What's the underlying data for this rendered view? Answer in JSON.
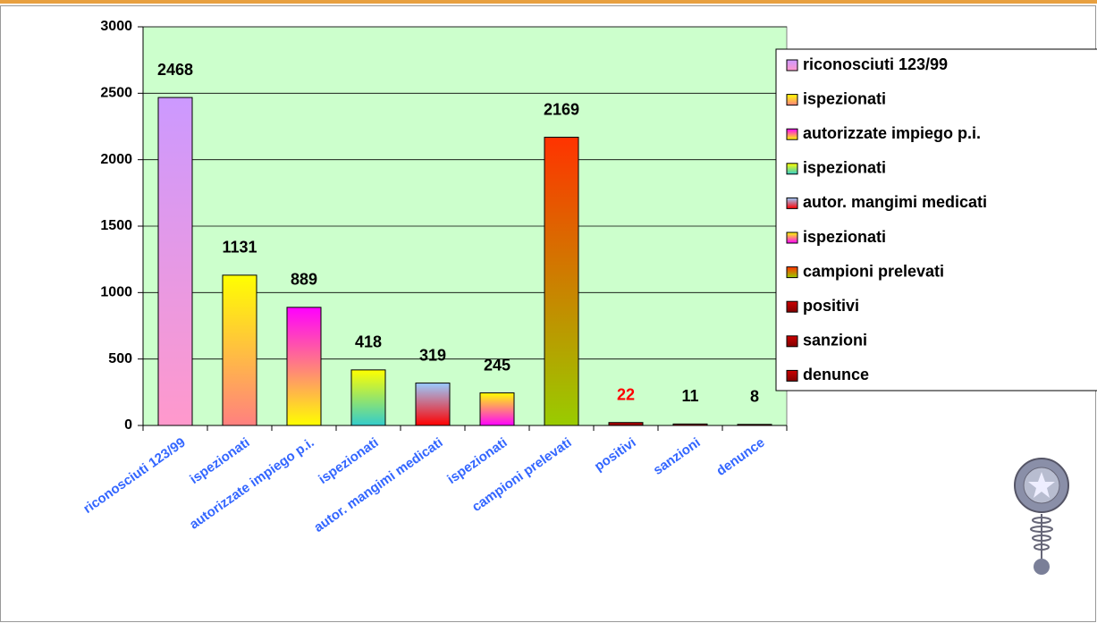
{
  "chart_data": {
    "type": "bar",
    "categories": [
      "riconosciuti 123/99",
      "ispezionati",
      "autorizzate impiego p.i.",
      "ispezionati",
      "autor. mangimi medicati",
      "ispezionati",
      "campioni prelevati",
      "positivi",
      "sanzioni",
      "denunce"
    ],
    "values": [
      2468,
      1131,
      889,
      418,
      319,
      245,
      2169,
      22,
      11,
      8
    ],
    "colors": [
      [
        "#cc99ff",
        "#ff99cc"
      ],
      [
        "#ffff00",
        "#ff8080"
      ],
      [
        "#ff00ff",
        "#ffff00"
      ],
      [
        "#ffff00",
        "#33cccc"
      ],
      [
        "#99ccff",
        "#ff0000"
      ],
      [
        "#ffff00",
        "#ff00ff"
      ],
      [
        "#ff3300",
        "#99cc00"
      ],
      [
        "#cc0000",
        "#800000"
      ],
      [
        "#cc0000",
        "#800000"
      ],
      [
        "#cc0000",
        "#800000"
      ]
    ],
    "label_colors": [
      "#000000",
      "#000000",
      "#000000",
      "#000000",
      "#000000",
      "#000000",
      "#000000",
      "#ff0000",
      "#000000",
      "#000000"
    ],
    "ylim": [
      0,
      3000
    ],
    "yticks": [
      0,
      500,
      1000,
      1500,
      2000,
      2500,
      3000
    ],
    "grid": true,
    "legend": "right",
    "plot_background": "#ccffcc"
  }
}
